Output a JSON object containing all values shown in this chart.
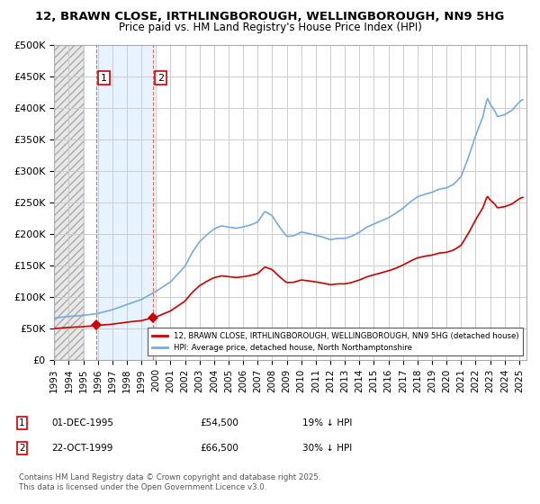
{
  "title_line1": "12, BRAWN CLOSE, IRTHLINGBOROUGH, WELLINGBOROUGH, NN9 5HG",
  "title_line2": "Price paid vs. HM Land Registry's House Price Index (HPI)",
  "bg_color": "#ffffff",
  "plot_bg_color": "#ffffff",
  "grid_color": "#cccccc",
  "hpi_color": "#7aaadd",
  "price_color": "#cc0000",
  "ylim": [
    0,
    500000
  ],
  "yticks": [
    0,
    50000,
    100000,
    150000,
    200000,
    250000,
    300000,
    350000,
    400000,
    450000,
    500000
  ],
  "ytick_labels": [
    "£0",
    "£50K",
    "£100K",
    "£150K",
    "£200K",
    "£250K",
    "£300K",
    "£350K",
    "£400K",
    "£450K",
    "£500K"
  ],
  "legend_label1": "12, BRAWN CLOSE, IRTHLINGBOROUGH, WELLINGBOROUGH, NN9 5HG (detached house)",
  "legend_label2": "HPI: Average price, detached house, North Northamptonshire",
  "annotation1_date": "01-DEC-1995",
  "annotation1_price": "£54,500",
  "annotation1_hpi": "19% ↓ HPI",
  "annotation2_date": "22-OCT-1999",
  "annotation2_price": "£66,500",
  "annotation2_hpi": "30% ↓ HPI",
  "footnote": "Contains HM Land Registry data © Crown copyright and database right 2025.\nThis data is licensed under the Open Government Licence v3.0.",
  "sale1_year": 1995.92,
  "sale1_value": 54500,
  "sale2_year": 1999.82,
  "sale2_value": 66500,
  "hatch_end": 1995.0,
  "shade_start": 1995.92,
  "shade_end": 1999.82,
  "xlim_start": 1993.0,
  "xlim_end": 2025.5,
  "xtick_years": [
    1993,
    1994,
    1995,
    1996,
    1997,
    1998,
    1999,
    2000,
    2001,
    2002,
    2003,
    2004,
    2005,
    2006,
    2007,
    2008,
    2009,
    2010,
    2011,
    2012,
    2013,
    2014,
    2015,
    2016,
    2017,
    2018,
    2019,
    2020,
    2021,
    2022,
    2023,
    2024,
    2025
  ]
}
